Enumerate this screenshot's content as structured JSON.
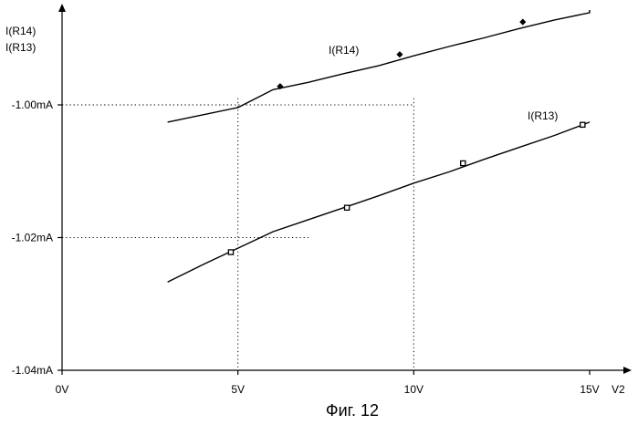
{
  "chart_data": {
    "type": "line",
    "title": "",
    "xlabel": "V2",
    "ylabel_lines": [
      "I(R14)",
      "I(R13)"
    ],
    "xlim": [
      0,
      16
    ],
    "ylim": [
      -1.04,
      -0.996
    ],
    "x_ticks": [
      {
        "value": 0,
        "label": "0V"
      },
      {
        "value": 5,
        "label": "5V"
      },
      {
        "value": 10,
        "label": "10V"
      },
      {
        "value": 15,
        "label": "15V"
      }
    ],
    "y_ticks": [
      {
        "value": -1.0,
        "label": "-1.00mA"
      },
      {
        "value": -1.02,
        "label": "-1.02mA"
      },
      {
        "value": -1.04,
        "label": "-1.04mA"
      }
    ],
    "grid": false,
    "series": [
      {
        "name": "I(R14)",
        "marker": "diamond",
        "x": [
          3.0,
          4.0,
          5.0,
          6.0,
          7.0,
          8.0,
          9.0,
          10.0,
          11.0,
          12.0,
          13.0,
          14.0,
          15.0,
          15.0
        ],
        "y": [
          -1.0026,
          -1.0015,
          -1.0004,
          -0.9977,
          -0.9966,
          -0.9953,
          -0.9941,
          -0.9926,
          -0.9912,
          -0.9899,
          -0.9885,
          -0.9872,
          -0.9861,
          -0.9857
        ],
        "marker_x": [
          6.2,
          9.6,
          13.1
        ],
        "marker_y": [
          -0.9972,
          -0.9924,
          -0.9875
        ]
      },
      {
        "name": "I(R13)",
        "marker": "square",
        "x": [
          3.0,
          4.0,
          5.0,
          6.0,
          7.0,
          8.0,
          9.0,
          10.0,
          11.0,
          12.0,
          13.0,
          14.0,
          15.0
        ],
        "y": [
          -1.0267,
          -1.0241,
          -1.0216,
          -1.0191,
          -1.0173,
          -1.0155,
          -1.0137,
          -1.0118,
          -1.0101,
          -1.0082,
          -1.0064,
          -1.0046,
          -1.0026
        ],
        "marker_x": [
          4.8,
          8.1,
          11.4,
          14.8
        ],
        "marker_y": [
          -1.0222,
          -1.0155,
          -1.0088,
          -1.003
        ]
      }
    ],
    "guide_points": [
      {
        "x": 5,
        "y": -1.0,
        "to_x": 6
      },
      {
        "x": 10,
        "y": -1.0,
        "to_x": 10
      },
      {
        "x": 5,
        "y": -1.02,
        "to_x": 7
      }
    ],
    "caption": "Фиг. 12"
  }
}
